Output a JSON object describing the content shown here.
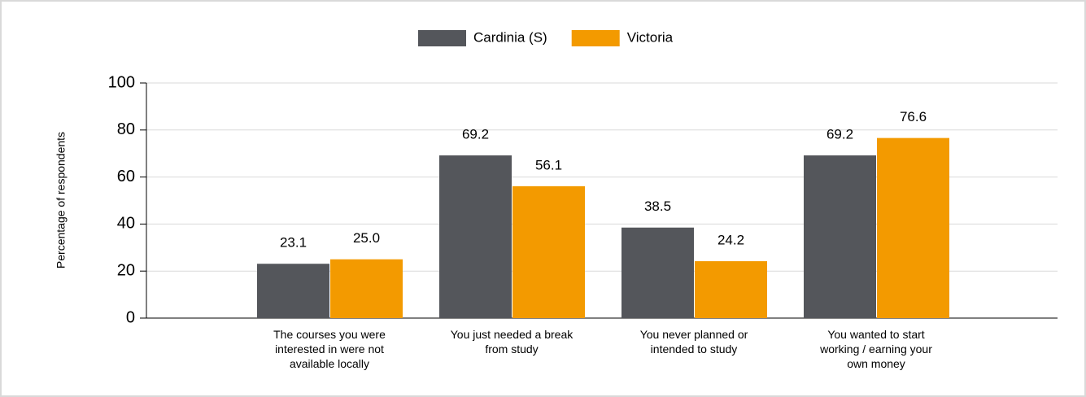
{
  "chart_data": {
    "type": "bar",
    "y_label": "Percentage of respondents",
    "categories": [
      "The courses you were interested in were not available locally",
      "You just needed a break from study",
      "You never planned or intended to study",
      "You wanted to start working / earning your own money"
    ],
    "series": [
      {
        "name": "Cardinia (S)",
        "color": "#54565b",
        "values": [
          23.1,
          69.2,
          38.5,
          69.2
        ],
        "value_labels": [
          "23.1",
          "69.2",
          "38.5",
          "69.2"
        ]
      },
      {
        "name": "Victoria",
        "color": "#f39a00",
        "values": [
          25.0,
          56.1,
          24.2,
          76.6
        ],
        "value_labels": [
          "25.0",
          "56.1",
          "24.2",
          "76.6"
        ]
      }
    ],
    "ylim": [
      0,
      100
    ],
    "yticks": [
      0,
      20,
      40,
      60,
      80,
      100
    ],
    "grid": true,
    "legend": "top"
  }
}
